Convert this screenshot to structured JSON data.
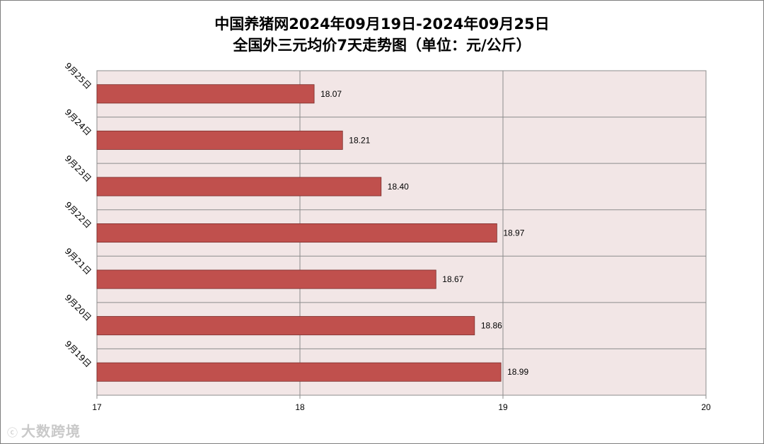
{
  "chart_data": {
    "type": "bar",
    "orientation": "horizontal",
    "title_line1": "中国养猪网2024年09月19日-2024年09月25日",
    "title_line2": "全国外三元均价7天走势图（单位：元/公斤）",
    "categories": [
      "9月25日",
      "9月24日",
      "9月23日",
      "9月22日",
      "9月21日",
      "9月20日",
      "9月19日"
    ],
    "values": [
      18.07,
      18.21,
      18.4,
      18.97,
      18.67,
      18.86,
      18.99
    ],
    "value_labels": [
      "18.07",
      "18.21",
      "18.40",
      "18.97",
      "18.67",
      "18.86",
      "18.99"
    ],
    "xlim": [
      17,
      20
    ],
    "x_ticks": [
      17,
      18,
      19,
      20
    ],
    "grid": true,
    "legend": "none",
    "bar_color": "#c0504d",
    "plot_bg": "#f2e6e6"
  },
  "watermark": {
    "logo": "ⓒ",
    "text": "大数跨境"
  }
}
